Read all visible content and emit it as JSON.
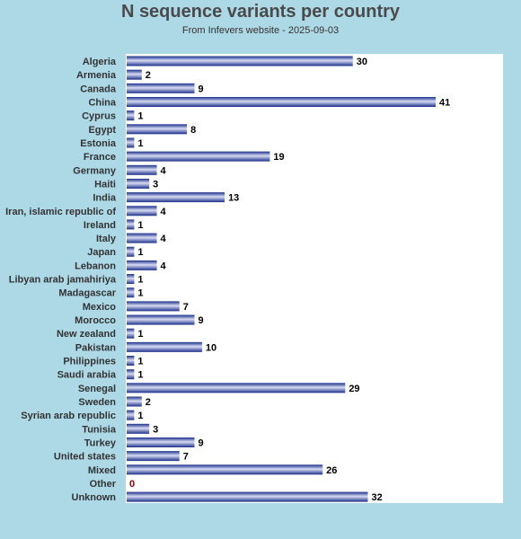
{
  "chart_data": {
    "type": "bar",
    "orientation": "horizontal",
    "title": "N sequence variants per country",
    "subtitle": "From Infevers website - 2025-09-03",
    "xlabel": "",
    "ylabel": "",
    "xlim": [
      0,
      42
    ],
    "grid": false,
    "colors": {
      "bar": "#1a2e8c",
      "bar_highlight": "#d8dcf2",
      "plot_bg": "#ffffff",
      "page_bg": "#add8e6",
      "zero_label": "#8b0000"
    },
    "categories": [
      "Algeria",
      "Armenia",
      "Canada",
      "China",
      "Cyprus",
      "Egypt",
      "Estonia",
      "France",
      "Germany",
      "Haiti",
      "India",
      "Iran, islamic republic of",
      "Ireland",
      "Italy",
      "Japan",
      "Lebanon",
      "Libyan arab jamahiriya",
      "Madagascar",
      "Mexico",
      "Morocco",
      "New zealand",
      "Pakistan",
      "Philippines",
      "Saudi arabia",
      "Senegal",
      "Sweden",
      "Syrian arab republic",
      "Tunisia",
      "Turkey",
      "United states",
      "Mixed",
      "Other",
      "Unknown"
    ],
    "values": [
      30,
      2,
      9,
      41,
      1,
      8,
      1,
      19,
      4,
      3,
      13,
      4,
      1,
      4,
      1,
      4,
      1,
      1,
      7,
      9,
      1,
      10,
      1,
      1,
      29,
      2,
      1,
      3,
      9,
      7,
      26,
      0,
      32
    ]
  }
}
